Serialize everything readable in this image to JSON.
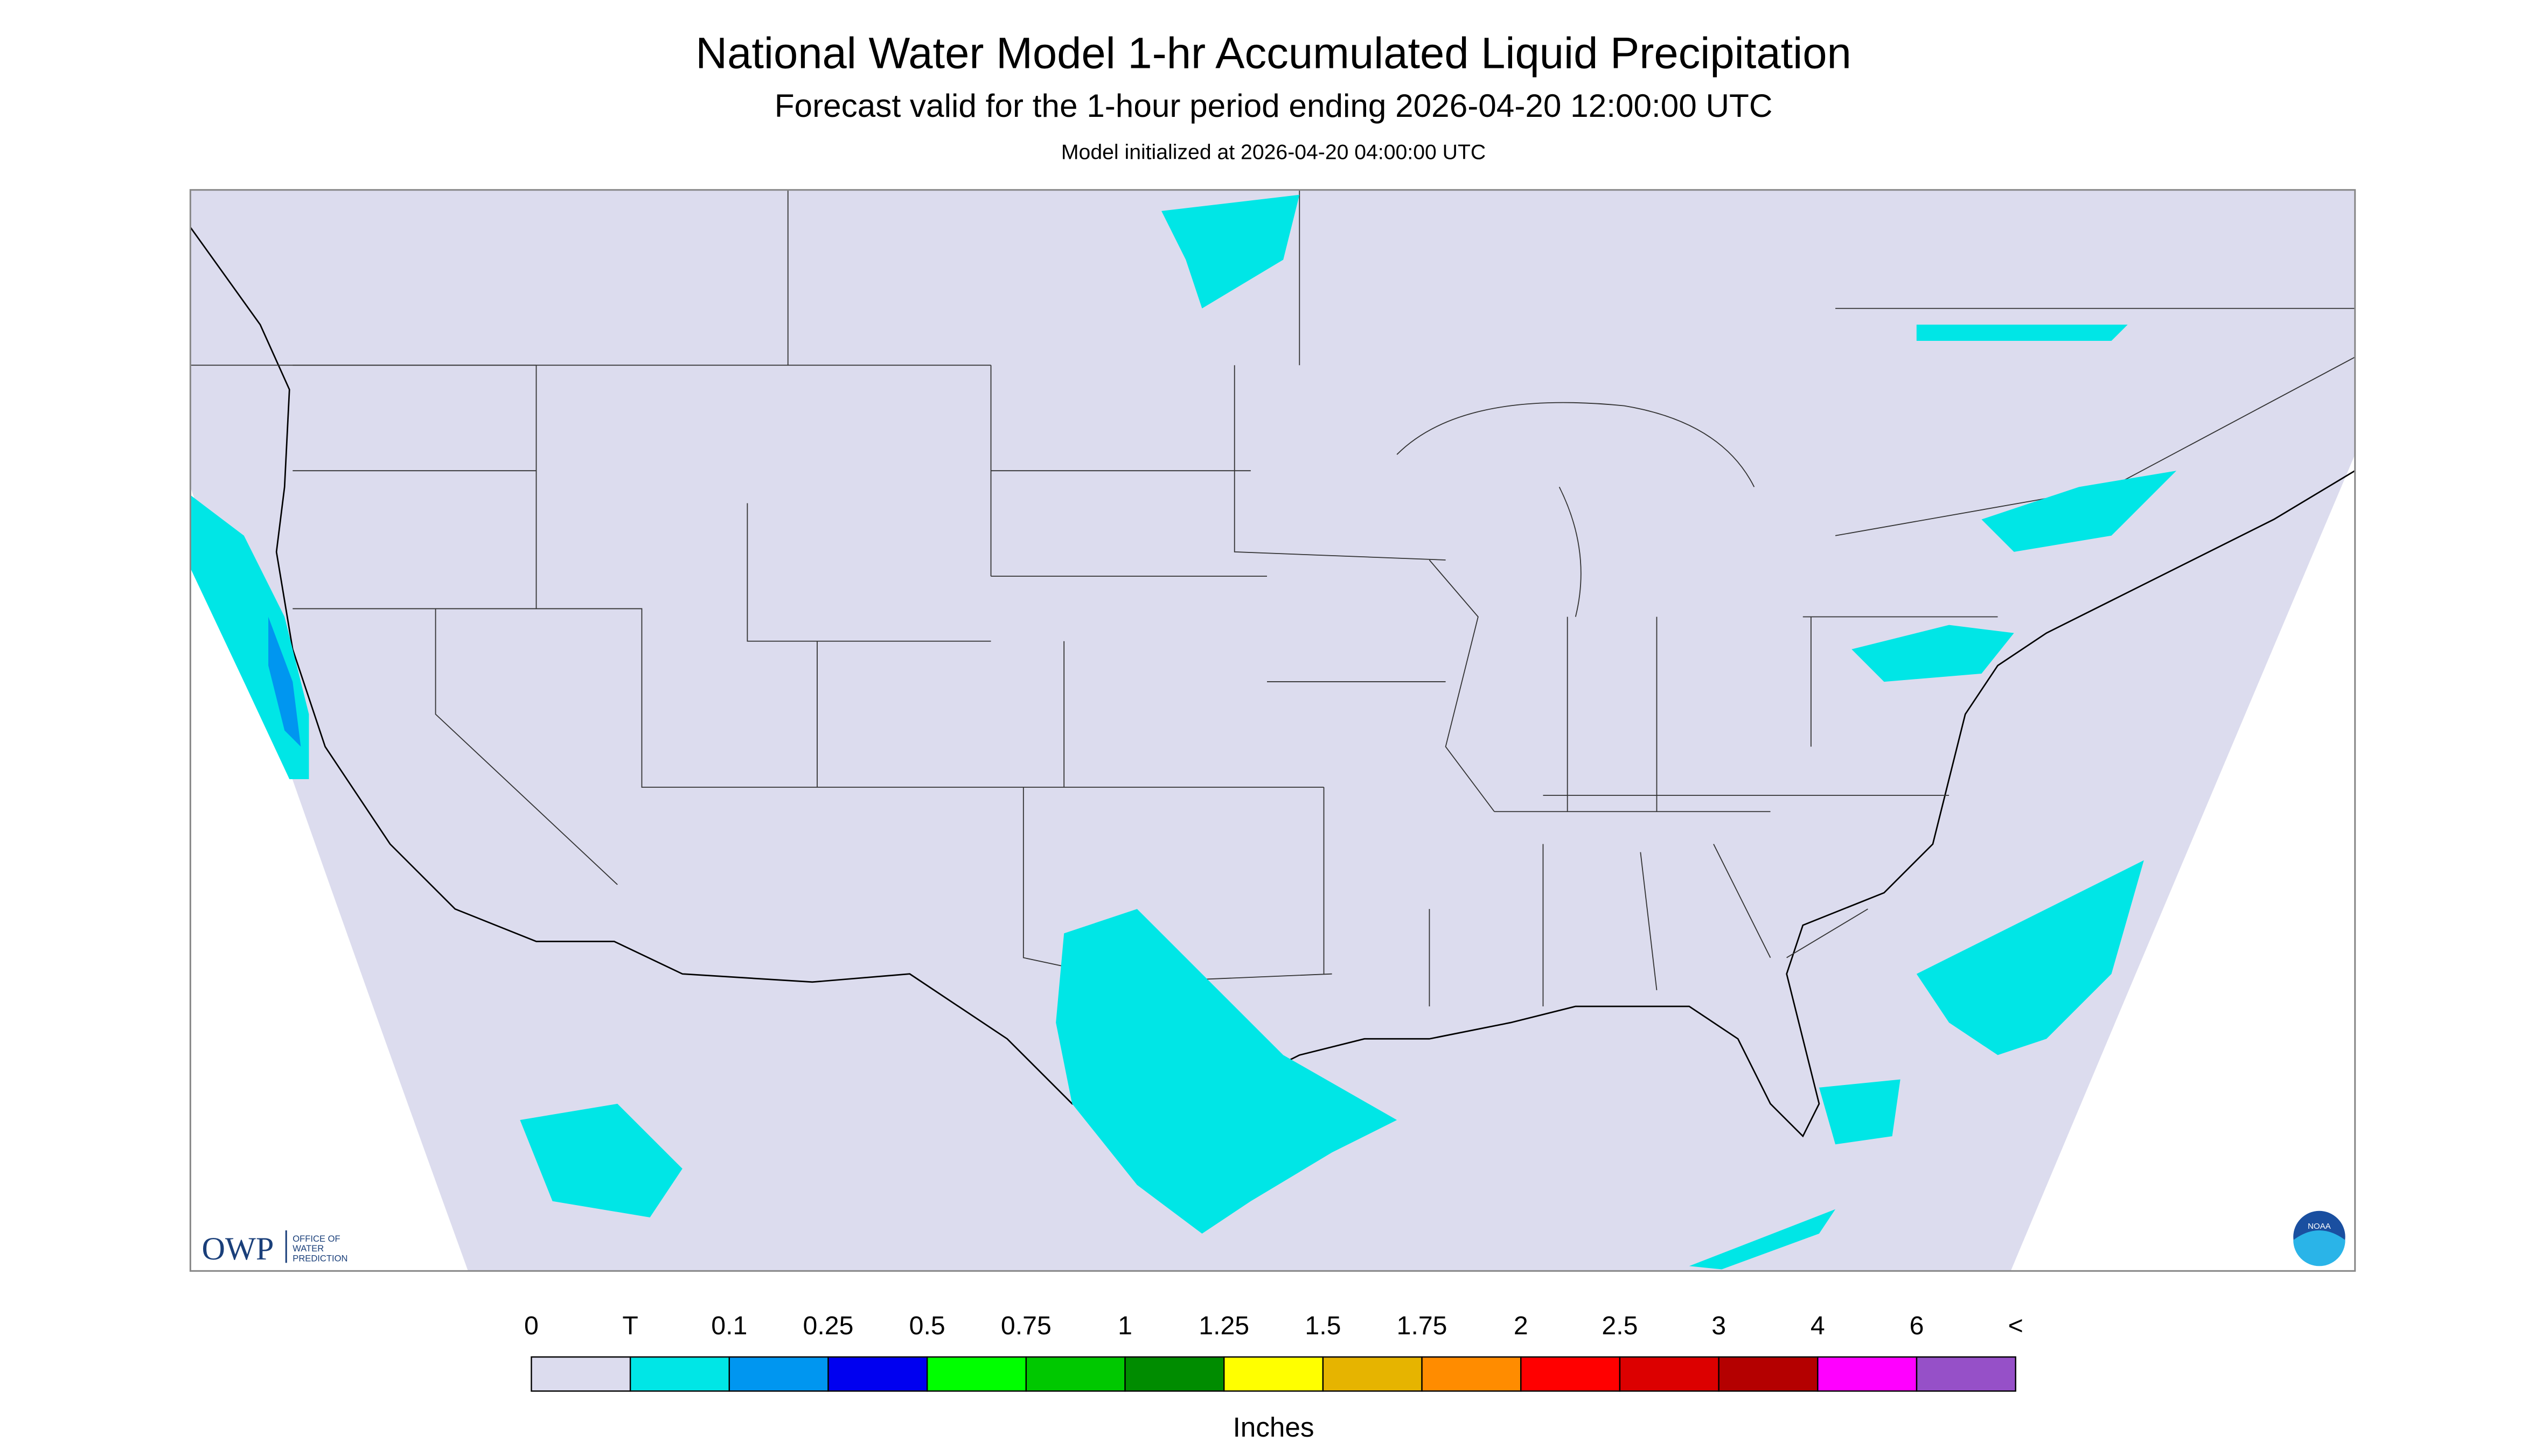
{
  "header": {
    "title": "National Water Model 1-hr Accumulated Liquid Precipitation",
    "subtitle": "Forecast valid for the 1-hour period ending 2026-04-20 12:00:00 UTC",
    "note": "Model initialized at 2026-04-20 04:00:00 UTC"
  },
  "logos": {
    "owp": "OWP",
    "owp_name": [
      "OFFICE OF",
      "WATER",
      "PREDICTION"
    ],
    "noaa": "NOAA"
  },
  "legend": {
    "labels": [
      "0",
      "T",
      "0.1",
      "0.25",
      "0.5",
      "0.75",
      "1",
      "1.25",
      "1.5",
      "1.75",
      "2",
      "2.5",
      "3",
      "4",
      "6",
      "<"
    ],
    "colors": [
      "#dcdcee",
      "#00e6e6",
      "#0096f0",
      "#0000f0",
      "#00ff00",
      "#00c800",
      "#008c00",
      "#ffff00",
      "#e6b400",
      "#ff8c00",
      "#ff0000",
      "#dc0000",
      "#b40000",
      "#ff00ff",
      "#9650c8"
    ],
    "unit": "Inches"
  }
}
